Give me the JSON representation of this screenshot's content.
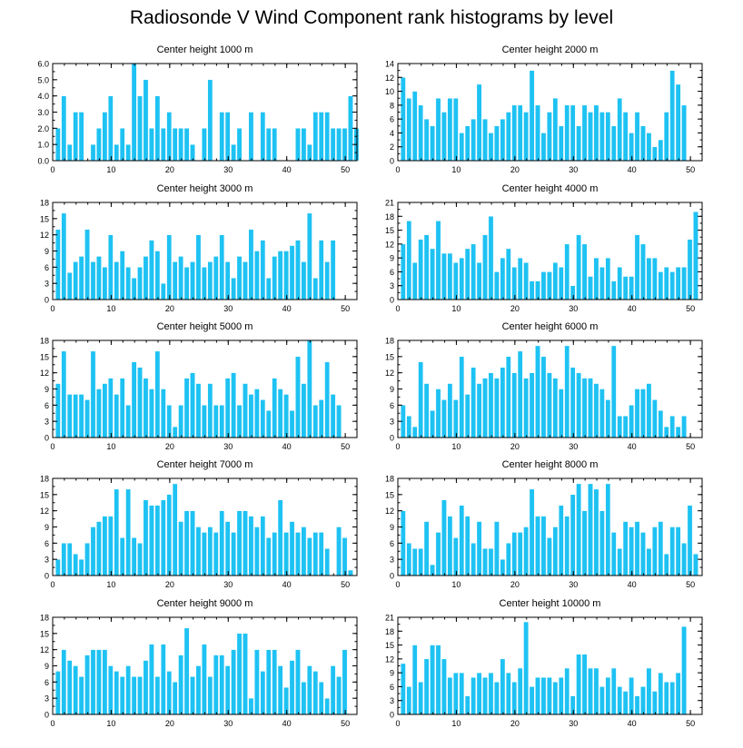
{
  "page_title": "Radiosonde V Wind Component rank histograms by level",
  "colors": {
    "bar": "#1ec2f3",
    "bar_edge": "#ffffff",
    "axis": "#000000"
  },
  "chart_data": [
    {
      "type": "bar",
      "title": "Center height 1000 m",
      "xlabel": "",
      "ylabel": "",
      "xlim": [
        0,
        52
      ],
      "ylim": [
        0,
        6
      ],
      "xticks": [
        0,
        10,
        20,
        30,
        40,
        50
      ],
      "yticks": [
        0,
        1,
        2,
        3,
        4,
        5,
        6
      ],
      "ytick_labels": [
        "0.0",
        "1.0",
        "2.0",
        "3.0",
        "4.0",
        "5.0",
        "6.0"
      ],
      "values": [
        2,
        4,
        1,
        3,
        3,
        0,
        1,
        2,
        3,
        4,
        1,
        2,
        1,
        6,
        4,
        5,
        2,
        4,
        2,
        3,
        2,
        2,
        2,
        1,
        0,
        2,
        5,
        0,
        3,
        3,
        1,
        2,
        0,
        3,
        0,
        3,
        2,
        2,
        0,
        0,
        0,
        2,
        2,
        1,
        3,
        3,
        3,
        2,
        2,
        2,
        4,
        2
      ]
    },
    {
      "type": "bar",
      "title": "Center height 2000 m",
      "xlabel": "",
      "ylabel": "",
      "xlim": [
        0,
        52
      ],
      "ylim": [
        0,
        14
      ],
      "xticks": [
        0,
        10,
        20,
        30,
        40,
        50
      ],
      "yticks": [
        0,
        2,
        4,
        6,
        8,
        10,
        12,
        14
      ],
      "ytick_labels": [
        "0",
        "2",
        "4",
        "6",
        "8",
        "10",
        "12",
        "14"
      ],
      "values": [
        12,
        9,
        10,
        8,
        6,
        5,
        9,
        7,
        9,
        9,
        4,
        5,
        6,
        11,
        6,
        4,
        5,
        6,
        7,
        8,
        8,
        7,
        13,
        8,
        4,
        7,
        9,
        5,
        8,
        8,
        5,
        8,
        7,
        8,
        7,
        7,
        5,
        9,
        7,
        4,
        7,
        5,
        4,
        2,
        3,
        7,
        13,
        11,
        8,
        0,
        0,
        0
      ]
    },
    {
      "type": "bar",
      "title": "Center height 3000 m",
      "xlabel": "",
      "ylabel": "",
      "xlim": [
        0,
        52
      ],
      "ylim": [
        0,
        18
      ],
      "xticks": [
        0,
        10,
        20,
        30,
        40,
        50
      ],
      "yticks": [
        0,
        3,
        6,
        9,
        12,
        15,
        18
      ],
      "ytick_labels": [
        "0",
        "3",
        "6",
        "9",
        "12",
        "15",
        "18"
      ],
      "values": [
        13,
        16,
        5,
        7,
        8,
        13,
        7,
        8,
        6,
        12,
        7,
        9,
        6,
        4,
        6,
        8,
        11,
        9,
        3,
        12,
        7,
        8,
        6,
        7,
        12,
        6,
        7,
        8,
        12,
        7,
        4,
        8,
        7,
        13,
        9,
        11,
        4,
        8,
        9,
        9,
        10,
        11,
        7,
        16,
        4,
        11,
        7,
        11,
        0,
        0,
        0,
        0
      ]
    },
    {
      "type": "bar",
      "title": "Center height 4000 m",
      "xlabel": "",
      "ylabel": "",
      "xlim": [
        0,
        52
      ],
      "ylim": [
        0,
        21
      ],
      "xticks": [
        0,
        10,
        20,
        30,
        40,
        50
      ],
      "yticks": [
        0,
        3,
        6,
        9,
        12,
        15,
        18,
        21
      ],
      "ytick_labels": [
        "0",
        "3",
        "6",
        "9",
        "12",
        "15",
        "18",
        "21"
      ],
      "values": [
        12,
        17,
        8,
        13,
        14,
        11,
        17,
        10,
        10,
        8,
        9,
        11,
        12,
        8,
        14,
        18,
        6,
        9,
        11,
        7,
        9,
        8,
        4,
        4,
        6,
        6,
        8,
        7,
        12,
        3,
        14,
        12,
        5,
        9,
        7,
        9,
        4,
        7,
        5,
        5,
        14,
        12,
        9,
        9,
        6,
        7,
        6,
        7,
        7,
        13,
        19,
        0
      ]
    },
    {
      "type": "bar",
      "title": "Center height 5000 m",
      "xlabel": "",
      "ylabel": "",
      "xlim": [
        0,
        52
      ],
      "ylim": [
        0,
        18
      ],
      "xticks": [
        0,
        10,
        20,
        30,
        40,
        50
      ],
      "yticks": [
        0,
        3,
        6,
        9,
        12,
        15,
        18
      ],
      "ytick_labels": [
        "0",
        "3",
        "6",
        "9",
        "12",
        "15",
        "18"
      ],
      "values": [
        10,
        16,
        8,
        8,
        8,
        7,
        16,
        9,
        10,
        11,
        8,
        11,
        6,
        14,
        13,
        11,
        9,
        16,
        9,
        6,
        2,
        6,
        11,
        12,
        10,
        6,
        10,
        6,
        6,
        11,
        12,
        6,
        10,
        8,
        9,
        7,
        5,
        11,
        9,
        8,
        5,
        15,
        10,
        18,
        6,
        7,
        14,
        8,
        6,
        0,
        0,
        0
      ]
    },
    {
      "type": "bar",
      "title": "Center height 6000 m",
      "xlabel": "",
      "ylabel": "",
      "xlim": [
        0,
        52
      ],
      "ylim": [
        0,
        18
      ],
      "xticks": [
        0,
        10,
        20,
        30,
        40,
        50
      ],
      "yticks": [
        0,
        3,
        6,
        9,
        12,
        15,
        18
      ],
      "ytick_labels": [
        "0",
        "3",
        "6",
        "9",
        "12",
        "15",
        "18"
      ],
      "values": [
        6,
        4,
        2,
        14,
        10,
        5,
        9,
        7,
        10,
        7,
        15,
        8,
        13,
        10,
        11,
        12,
        11,
        13,
        15,
        12,
        16,
        11,
        12,
        17,
        15,
        12,
        11,
        9,
        17,
        13,
        12,
        11,
        11,
        10,
        9,
        7,
        17,
        4,
        4,
        6,
        9,
        9,
        10,
        7,
        5,
        2,
        4,
        2,
        4,
        0,
        0,
        0
      ]
    },
    {
      "type": "bar",
      "title": "Center height 7000 m",
      "xlabel": "",
      "ylabel": "",
      "xlim": [
        0,
        52
      ],
      "ylim": [
        0,
        18
      ],
      "xticks": [
        0,
        10,
        20,
        30,
        40,
        50
      ],
      "yticks": [
        0,
        3,
        6,
        9,
        12,
        15,
        18
      ],
      "ytick_labels": [
        "0",
        "3",
        "6",
        "9",
        "12",
        "15",
        "18"
      ],
      "values": [
        3,
        6,
        6,
        4,
        3,
        6,
        9,
        10,
        11,
        11,
        16,
        7,
        16,
        7,
        6,
        14,
        13,
        13,
        14,
        15,
        17,
        10,
        12,
        12,
        9,
        8,
        9,
        8,
        12,
        10,
        8,
        12,
        12,
        11,
        9,
        11,
        7,
        8,
        14,
        8,
        10,
        8,
        9,
        7,
        8,
        8,
        5,
        0,
        9,
        7,
        1,
        0
      ]
    },
    {
      "type": "bar",
      "title": "Center height 8000 m",
      "xlabel": "",
      "ylabel": "",
      "xlim": [
        0,
        52
      ],
      "ylim": [
        0,
        18
      ],
      "xticks": [
        0,
        10,
        20,
        30,
        40,
        50
      ],
      "yticks": [
        0,
        3,
        6,
        9,
        12,
        15,
        18
      ],
      "ytick_labels": [
        "0",
        "3",
        "6",
        "9",
        "12",
        "15",
        "18"
      ],
      "values": [
        12,
        6,
        5,
        5,
        10,
        2,
        8,
        14,
        11,
        7,
        13,
        11,
        6,
        10,
        5,
        5,
        10,
        3,
        6,
        8,
        8,
        9,
        16,
        11,
        11,
        7,
        9,
        13,
        11,
        15,
        17,
        12,
        17,
        16,
        12,
        17,
        8,
        5,
        10,
        9,
        10,
        8,
        5,
        9,
        10,
        4,
        9,
        9,
        6,
        13,
        4,
        0
      ]
    },
    {
      "type": "bar",
      "title": "Center height 9000 m",
      "xlabel": "",
      "ylabel": "",
      "xlim": [
        0,
        52
      ],
      "ylim": [
        0,
        18
      ],
      "xticks": [
        0,
        10,
        20,
        30,
        40,
        50
      ],
      "yticks": [
        0,
        3,
        6,
        9,
        12,
        15,
        18
      ],
      "ytick_labels": [
        "0",
        "3",
        "6",
        "9",
        "12",
        "15",
        "18"
      ],
      "values": [
        8,
        12,
        10,
        9,
        7,
        11,
        12,
        12,
        12,
        9,
        8,
        7,
        9,
        7,
        7,
        10,
        13,
        7,
        13,
        8,
        6,
        11,
        16,
        7,
        9,
        13,
        7,
        11,
        11,
        9,
        12,
        15,
        15,
        3,
        12,
        8,
        12,
        12,
        9,
        5,
        10,
        12,
        6,
        9,
        8,
        6,
        3,
        9,
        7,
        12,
        0,
        0
      ]
    },
    {
      "type": "bar",
      "title": "Center height 10000 m",
      "xlabel": "",
      "ylabel": "",
      "xlim": [
        0,
        52
      ],
      "ylim": [
        0,
        21
      ],
      "xticks": [
        0,
        10,
        20,
        30,
        40,
        50
      ],
      "yticks": [
        0,
        3,
        6,
        9,
        12,
        15,
        18,
        21
      ],
      "ytick_labels": [
        "0",
        "3",
        "6",
        "9",
        "12",
        "15",
        "18",
        "21"
      ],
      "values": [
        11,
        6,
        15,
        7,
        12,
        15,
        15,
        12,
        8,
        9,
        9,
        4,
        8,
        9,
        8,
        9,
        7,
        12,
        9,
        7,
        10,
        20,
        6,
        8,
        8,
        8,
        7,
        8,
        10,
        4,
        13,
        13,
        10,
        10,
        6,
        8,
        10,
        6,
        5,
        8,
        4,
        6,
        10,
        5,
        9,
        7,
        7,
        9,
        19,
        0,
        0,
        0
      ]
    }
  ]
}
